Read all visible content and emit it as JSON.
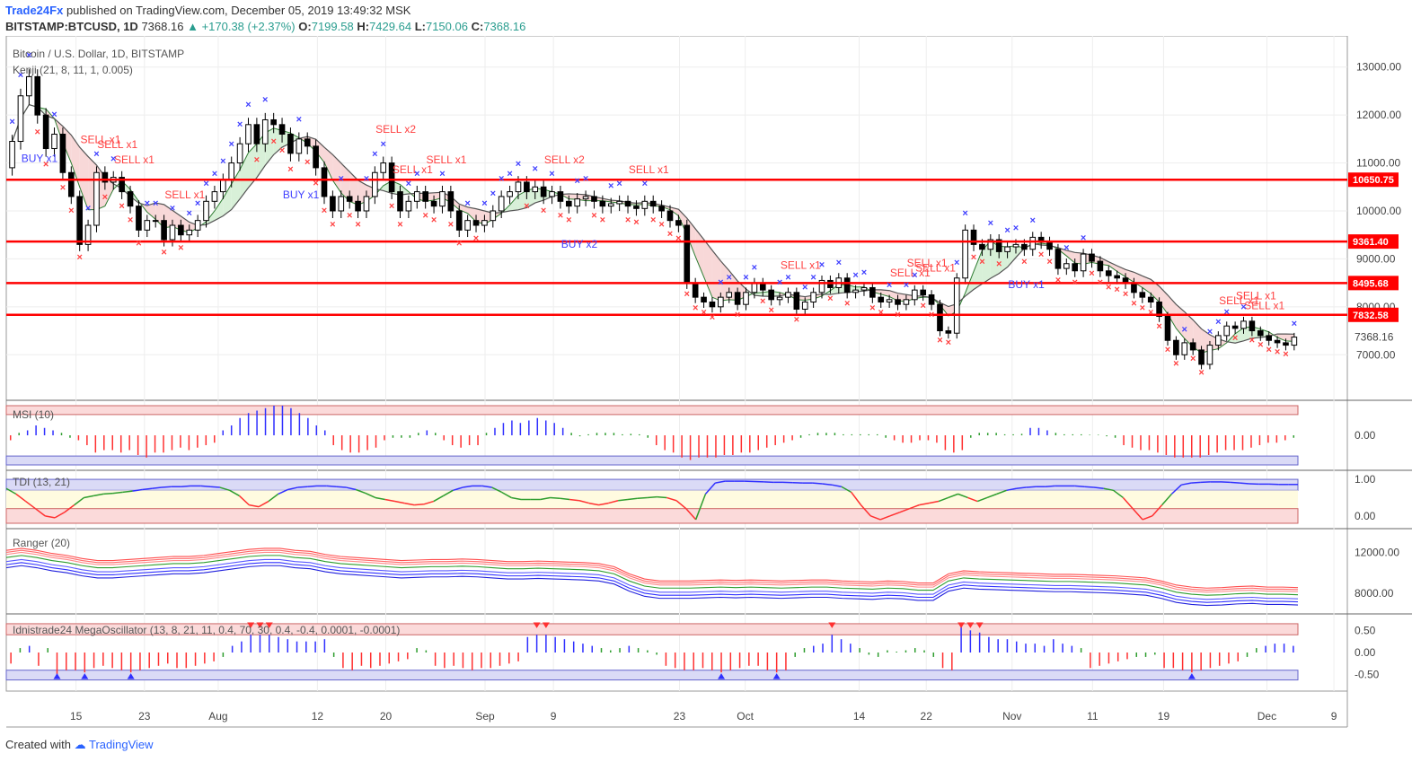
{
  "header": {
    "brand": "Trade24Fx",
    "published": "published on TradingView.com, December 05, 2019 13:49:32 MSK",
    "symbol": "BITSTAMP:BTCUSD, 1D",
    "last": "7368.16",
    "change": "+170.38 (+2.37%)",
    "o_label": "O:",
    "o": "7199.58",
    "h_label": "H:",
    "h": "7429.64",
    "l_label": "L:",
    "l": "7150.06",
    "c_label": "C:",
    "c": "7368.16"
  },
  "footer": {
    "created": "Created with",
    "tv": "TradingView"
  },
  "colors": {
    "up": "#ffffff",
    "down": "#000000",
    "sr": "#ff0000",
    "sell": "#ff4040",
    "buy": "#4040ff",
    "grid": "#eeeeee"
  },
  "chart_data": [
    {
      "type": "candlestick",
      "title": "Bitcoin / U.S. Dollar, 1D, BITSTAMP",
      "indicator": "Kenji (21, 8, 11, 1, 0.005)",
      "ylim": [
        6200,
        13500
      ],
      "yticks": [
        "13000.00",
        "12000.00",
        "11000.00",
        "10000.00",
        "9000.00",
        "8000.00",
        "7000.00"
      ],
      "current_price": "7368.16",
      "support_resistance": [
        "10650.75",
        "9361.40",
        "8495.68",
        "7832.58"
      ],
      "xticks": [
        "15",
        "23",
        "Aug",
        "12",
        "20",
        "Sep",
        "9",
        "23",
        "Oct",
        "14",
        "22",
        "Nov",
        "11",
        "19",
        "Dec",
        "9"
      ],
      "signals": [
        {
          "text": "BUY x1",
          "type": "buy",
          "i": 3
        },
        {
          "text": "SELL x1",
          "type": "sell",
          "i": 10
        },
        {
          "text": "SELL x1",
          "type": "sell",
          "i": 12
        },
        {
          "text": "SELL x1",
          "type": "sell",
          "i": 14
        },
        {
          "text": "SELL x1",
          "type": "sell",
          "i": 20
        },
        {
          "text": "BUY x1",
          "type": "buy",
          "i": 34
        },
        {
          "text": "SELL x2",
          "type": "sell",
          "i": 45
        },
        {
          "text": "SELL x1",
          "type": "sell",
          "i": 47
        },
        {
          "text": "SELL x1",
          "type": "sell",
          "i": 51
        },
        {
          "text": "SELL x2",
          "type": "sell",
          "i": 65
        },
        {
          "text": "BUY x2",
          "type": "buy",
          "i": 67
        },
        {
          "text": "SELL x1",
          "type": "sell",
          "i": 75
        },
        {
          "text": "SELL x1",
          "type": "sell",
          "i": 93
        },
        {
          "text": "SELL x1",
          "type": "sell",
          "i": 106
        },
        {
          "text": "SELL x1",
          "type": "sell",
          "i": 108
        },
        {
          "text": "SELL x1",
          "type": "sell",
          "i": 109
        },
        {
          "text": "BUY x1",
          "type": "buy",
          "i": 120
        },
        {
          "text": "SELL x1",
          "type": "sell",
          "i": 145
        },
        {
          "text": "SELL x1",
          "type": "sell",
          "i": 147
        },
        {
          "text": "SELL x1",
          "type": "sell",
          "i": 148
        }
      ],
      "candles": [
        [
          10900,
          11450
        ],
        [
          11450,
          12400
        ],
        [
          12400,
          12800
        ],
        [
          12800,
          12000
        ],
        [
          12000,
          11300
        ],
        [
          11300,
          11600
        ],
        [
          11600,
          10800
        ],
        [
          10800,
          10300
        ],
        [
          10300,
          9300
        ],
        [
          9300,
          9700
        ],
        [
          9700,
          10800
        ],
        [
          10800,
          10600
        ],
        [
          10600,
          10700
        ],
        [
          10700,
          10400
        ],
        [
          10400,
          10100
        ],
        [
          10100,
          9600
        ],
        [
          9600,
          9800
        ],
        [
          9800,
          9800
        ],
        [
          9800,
          9400
        ],
        [
          9400,
          9700
        ],
        [
          9700,
          9500
        ],
        [
          9500,
          9600
        ],
        [
          9600,
          9800
        ],
        [
          9800,
          10200
        ],
        [
          10200,
          10400
        ],
        [
          10400,
          10650
        ],
        [
          10650,
          11000
        ],
        [
          11000,
          11400
        ],
        [
          11400,
          11800
        ],
        [
          11800,
          11400
        ],
        [
          11400,
          11900
        ],
        [
          11900,
          11800
        ],
        [
          11800,
          11600
        ],
        [
          11600,
          11200
        ],
        [
          11200,
          11500
        ],
        [
          11500,
          11350
        ],
        [
          11350,
          10900
        ],
        [
          10900,
          10300
        ],
        [
          10300,
          10000
        ],
        [
          10000,
          10300
        ],
        [
          10300,
          10200
        ],
        [
          10200,
          10000
        ],
        [
          10000,
          10300
        ],
        [
          10300,
          10800
        ],
        [
          10800,
          11000
        ],
        [
          11000,
          10400
        ],
        [
          10400,
          10000
        ],
        [
          10000,
          10200
        ],
        [
          10200,
          10400
        ],
        [
          10400,
          10200
        ],
        [
          10200,
          10100
        ],
        [
          10100,
          10400
        ],
        [
          10400,
          10000
        ],
        [
          10000,
          9600
        ],
        [
          9600,
          9800
        ],
        [
          9800,
          9700
        ],
        [
          9700,
          9800
        ],
        [
          9800,
          10000
        ],
        [
          10000,
          10300
        ],
        [
          10300,
          10400
        ],
        [
          10400,
          10600
        ],
        [
          10600,
          10400
        ],
        [
          10400,
          10500
        ],
        [
          10500,
          10300
        ],
        [
          10300,
          10400
        ],
        [
          10400,
          10200
        ],
        [
          10200,
          10100
        ],
        [
          10100,
          10250
        ],
        [
          10250,
          10300
        ],
        [
          10300,
          10200
        ],
        [
          10200,
          10100
        ],
        [
          10100,
          10150
        ],
        [
          10150,
          10200
        ],
        [
          10200,
          10100
        ],
        [
          10100,
          10050
        ],
        [
          10050,
          10200
        ],
        [
          10200,
          10100
        ],
        [
          10100,
          10000
        ],
        [
          10000,
          9800
        ],
        [
          9800,
          9700
        ],
        [
          9700,
          8500
        ],
        [
          8500,
          8200
        ],
        [
          8200,
          8100
        ],
        [
          8100,
          8000
        ],
        [
          8000,
          8200
        ],
        [
          8200,
          8300
        ],
        [
          8300,
          8050
        ],
        [
          8050,
          8300
        ],
        [
          8300,
          8500
        ],
        [
          8500,
          8350
        ],
        [
          8350,
          8150
        ],
        [
          8150,
          8200
        ],
        [
          8200,
          8300
        ],
        [
          8300,
          7950
        ],
        [
          7950,
          8100
        ],
        [
          8100,
          8300
        ],
        [
          8300,
          8550
        ],
        [
          8550,
          8400
        ],
        [
          8400,
          8600
        ],
        [
          8600,
          8300
        ],
        [
          8300,
          8350
        ],
        [
          8350,
          8400
        ],
        [
          8400,
          8200
        ],
        [
          8200,
          8100
        ],
        [
          8100,
          8150
        ],
        [
          8150,
          8050
        ],
        [
          8050,
          8150
        ],
        [
          8150,
          8350
        ],
        [
          8350,
          8250
        ],
        [
          8250,
          8050
        ],
        [
          8050,
          7500
        ],
        [
          7500,
          7450
        ],
        [
          7450,
          8600
        ],
        [
          8600,
          9600
        ],
        [
          9600,
          9300
        ],
        [
          9300,
          9200
        ],
        [
          9200,
          9400
        ],
        [
          9400,
          9150
        ],
        [
          9150,
          9250
        ],
        [
          9250,
          9300
        ],
        [
          9300,
          9200
        ],
        [
          9200,
          9450
        ],
        [
          9450,
          9350
        ],
        [
          9350,
          9200
        ],
        [
          9200,
          8800
        ],
        [
          8800,
          8900
        ],
        [
          8900,
          8750
        ],
        [
          8750,
          9100
        ],
        [
          9100,
          8950
        ],
        [
          8950,
          8750
        ],
        [
          8750,
          8650
        ],
        [
          8650,
          8600
        ],
        [
          8600,
          8500
        ],
        [
          8500,
          8300
        ],
        [
          8300,
          8200
        ],
        [
          8200,
          8100
        ],
        [
          8100,
          7800
        ],
        [
          7800,
          7300
        ],
        [
          7300,
          7000
        ],
        [
          7000,
          7250
        ],
        [
          7250,
          7100
        ],
        [
          7100,
          6800
        ],
        [
          6800,
          7200
        ],
        [
          7200,
          7400
        ],
        [
          7400,
          7600
        ],
        [
          7600,
          7550
        ],
        [
          7550,
          7700
        ],
        [
          7700,
          7500
        ],
        [
          7500,
          7400
        ],
        [
          7400,
          7300
        ],
        [
          7300,
          7250
        ],
        [
          7250,
          7200
        ],
        [
          7200,
          7368
        ]
      ]
    },
    {
      "type": "histogram",
      "title": "MSI (10)",
      "ylim": [
        -0.6,
        0.6
      ],
      "yticks": [
        "0.00"
      ],
      "values": [
        -0.1,
        0.05,
        0.1,
        0.2,
        0.15,
        0.1,
        0.05,
        -0.05,
        -0.1,
        -0.2,
        -0.35,
        -0.3,
        -0.3,
        -0.35,
        -0.3,
        -0.4,
        -0.45,
        -0.35,
        -0.35,
        -0.3,
        -0.25,
        -0.3,
        -0.25,
        -0.2,
        -0.15,
        0.1,
        0.2,
        0.35,
        0.45,
        0.5,
        0.55,
        0.6,
        0.6,
        0.55,
        0.45,
        0.35,
        0.2,
        0.1,
        -0.2,
        -0.3,
        -0.35,
        -0.35,
        -0.3,
        -0.25,
        -0.1,
        -0.05,
        -0.05,
        -0.05,
        0.05,
        0.1,
        0.05,
        -0.1,
        -0.2,
        -0.25,
        -0.2,
        -0.2,
        0.05,
        0.15,
        0.25,
        0.3,
        0.25,
        0.3,
        0.35,
        0.3,
        0.25,
        0.15,
        0.05,
        -0.02,
        0.02,
        0.05,
        0.05,
        0.05,
        0.02,
        0.03,
        0.02,
        -0.05,
        -0.2,
        -0.3,
        -0.35,
        -0.45,
        -0.5,
        -0.45,
        -0.45,
        -0.45,
        -0.4,
        -0.4,
        -0.35,
        -0.35,
        -0.3,
        -0.25,
        -0.2,
        -0.15,
        -0.1,
        -0.05,
        0.02,
        0.05,
        0.05,
        0.05,
        0.02,
        0.02,
        0.02,
        0.02,
        0.02,
        -0.05,
        -0.1,
        -0.15,
        -0.15,
        -0.1,
        -0.1,
        -0.15,
        -0.3,
        -0.35,
        -0.3,
        -0.05,
        0.05,
        0.05,
        0.05,
        0.02,
        0.02,
        0.03,
        0.15,
        0.15,
        0.1,
        0.05,
        0.02,
        0.02,
        0.02,
        0.01,
        0.01,
        -0.02,
        -0.05,
        -0.2,
        -0.25,
        -0.3,
        -0.3,
        -0.35,
        -0.4,
        -0.45,
        -0.45,
        -0.45,
        -0.45,
        -0.4,
        -0.35,
        -0.3,
        -0.3,
        -0.3,
        -0.25,
        -0.2,
        -0.15,
        -0.15,
        -0.1,
        -0.05
      ]
    },
    {
      "type": "line",
      "title": "TDI (13, 21)",
      "ylim": [
        -0.2,
        1.1
      ],
      "yticks": [
        "1.00",
        "0.00"
      ],
      "values": [
        0.75,
        0.6,
        0.4,
        0.2,
        0.0,
        -0.05,
        0.1,
        0.3,
        0.5,
        0.55,
        0.6,
        0.62,
        0.65,
        0.68,
        0.72,
        0.75,
        0.78,
        0.8,
        0.8,
        0.82,
        0.82,
        0.8,
        0.78,
        0.7,
        0.55,
        0.3,
        0.25,
        0.4,
        0.6,
        0.72,
        0.78,
        0.8,
        0.82,
        0.82,
        0.8,
        0.78,
        0.72,
        0.62,
        0.5,
        0.45,
        0.4,
        0.35,
        0.3,
        0.32,
        0.4,
        0.55,
        0.7,
        0.78,
        0.82,
        0.82,
        0.78,
        0.65,
        0.5,
        0.45,
        0.45,
        0.45,
        0.5,
        0.48,
        0.45,
        0.42,
        0.35,
        0.3,
        0.35,
        0.42,
        0.45,
        0.48,
        0.5,
        0.52,
        0.5,
        0.42,
        0.2,
        -0.1,
        0.6,
        0.9,
        0.95,
        0.95,
        0.95,
        0.94,
        0.93,
        0.92,
        0.92,
        0.91,
        0.9,
        0.9,
        0.88,
        0.85,
        0.8,
        0.65,
        0.3,
        0.0,
        -0.1,
        0.0,
        0.1,
        0.2,
        0.3,
        0.35,
        0.4,
        0.5,
        0.6,
        0.5,
        0.4,
        0.5,
        0.6,
        0.7,
        0.75,
        0.78,
        0.8,
        0.8,
        0.82,
        0.82,
        0.82,
        0.8,
        0.78,
        0.75,
        0.7,
        0.5,
        0.2,
        -0.1,
        0.0,
        0.3,
        0.6,
        0.85,
        0.9,
        0.92,
        0.93,
        0.93,
        0.92,
        0.9,
        0.88,
        0.87,
        0.87,
        0.86,
        0.86,
        0.86
      ]
    },
    {
      "type": "band",
      "title": "Ranger (20)",
      "ylim": [
        6500,
        13800
      ],
      "yticks": [
        "12000.00",
        "8000.00"
      ],
      "base": [
        11300,
        11500,
        11300,
        11000,
        10800,
        10500,
        10300,
        10300,
        10400,
        10500,
        10600,
        10700,
        10700,
        10800,
        11000,
        11200,
        11400,
        11500,
        11500,
        11300,
        11200,
        10900,
        10700,
        10600,
        10500,
        10400,
        10300,
        10350,
        10400,
        10400,
        10450,
        10400,
        10300,
        10200,
        10200,
        10250,
        10200,
        10150,
        10100,
        10000,
        9700,
        9000,
        8500,
        8300,
        8300,
        8300,
        8350,
        8400,
        8350,
        8400,
        8350,
        8300,
        8350,
        8400,
        8400,
        8300,
        8250,
        8200,
        8300,
        8250,
        8100,
        8100,
        9000,
        9300,
        9200,
        9150,
        9100,
        9050,
        9000,
        8950,
        8950,
        8900,
        8850,
        8800,
        8700,
        8600,
        8300,
        7900,
        7700,
        7600,
        7650,
        7750,
        7800,
        7700,
        7700,
        7650
      ]
    },
    {
      "type": "histogram",
      "title": "Idnistrade24 MegaOscillator (13, 8, 21, 11, 0.4, 70, 30, 0.4, -0.4, 0.0001, -0.0001)",
      "ylim": [
        -0.75,
        0.75
      ],
      "yticks": [
        "0.50",
        "0.00",
        "-0.50"
      ],
      "values": [
        -0.25,
        0.1,
        0.15,
        -0.3,
        0.1,
        -0.5,
        -0.4,
        -0.4,
        -0.45,
        -0.35,
        -0.3,
        -0.35,
        -0.4,
        -0.45,
        -0.4,
        -0.35,
        -0.3,
        -0.25,
        -0.35,
        -0.35,
        -0.3,
        -0.25,
        -0.2,
        -0.1,
        0.15,
        0.25,
        0.4,
        0.4,
        0.4,
        0.35,
        0.3,
        0.25,
        0.25,
        0.25,
        0.3,
        -0.1,
        -0.35,
        -0.4,
        -0.3,
        -0.35,
        -0.3,
        -0.25,
        -0.2,
        -0.15,
        0.1,
        0.05,
        -0.3,
        -0.35,
        -0.3,
        -0.35,
        -0.4,
        -0.35,
        -0.35,
        -0.3,
        -0.25,
        -0.2,
        0.35,
        0.4,
        0.4,
        0.35,
        0.3,
        0.25,
        0.2,
        0.15,
        0.1,
        0.05,
        0.1,
        0.15,
        0.1,
        0.05,
        -0.05,
        -0.3,
        -0.35,
        -0.4,
        -0.4,
        -0.35,
        -0.4,
        -0.45,
        -0.4,
        -0.35,
        -0.3,
        -0.3,
        -0.4,
        -0.45,
        -0.4,
        -0.1,
        0.1,
        0.15,
        0.2,
        0.4,
        0.3,
        0.2,
        0.1,
        -0.05,
        -0.1,
        0.05,
        0.02,
        0.05,
        0.1,
        0.05,
        -0.1,
        -0.35,
        -0.4,
        0.6,
        0.5,
        0.45,
        0.35,
        0.3,
        0.3,
        0.25,
        0.2,
        0.2,
        0.15,
        0.3,
        0.2,
        0.15,
        0.1,
        -0.35,
        -0.3,
        -0.25,
        -0.2,
        -0.15,
        -0.1,
        -0.1,
        -0.05,
        -0.35,
        -0.35,
        -0.4,
        -0.45,
        -0.4,
        -0.35,
        -0.3,
        -0.25,
        -0.2,
        -0.1,
        0.1,
        0.15,
        0.2,
        0.2,
        0.15
      ]
    }
  ]
}
